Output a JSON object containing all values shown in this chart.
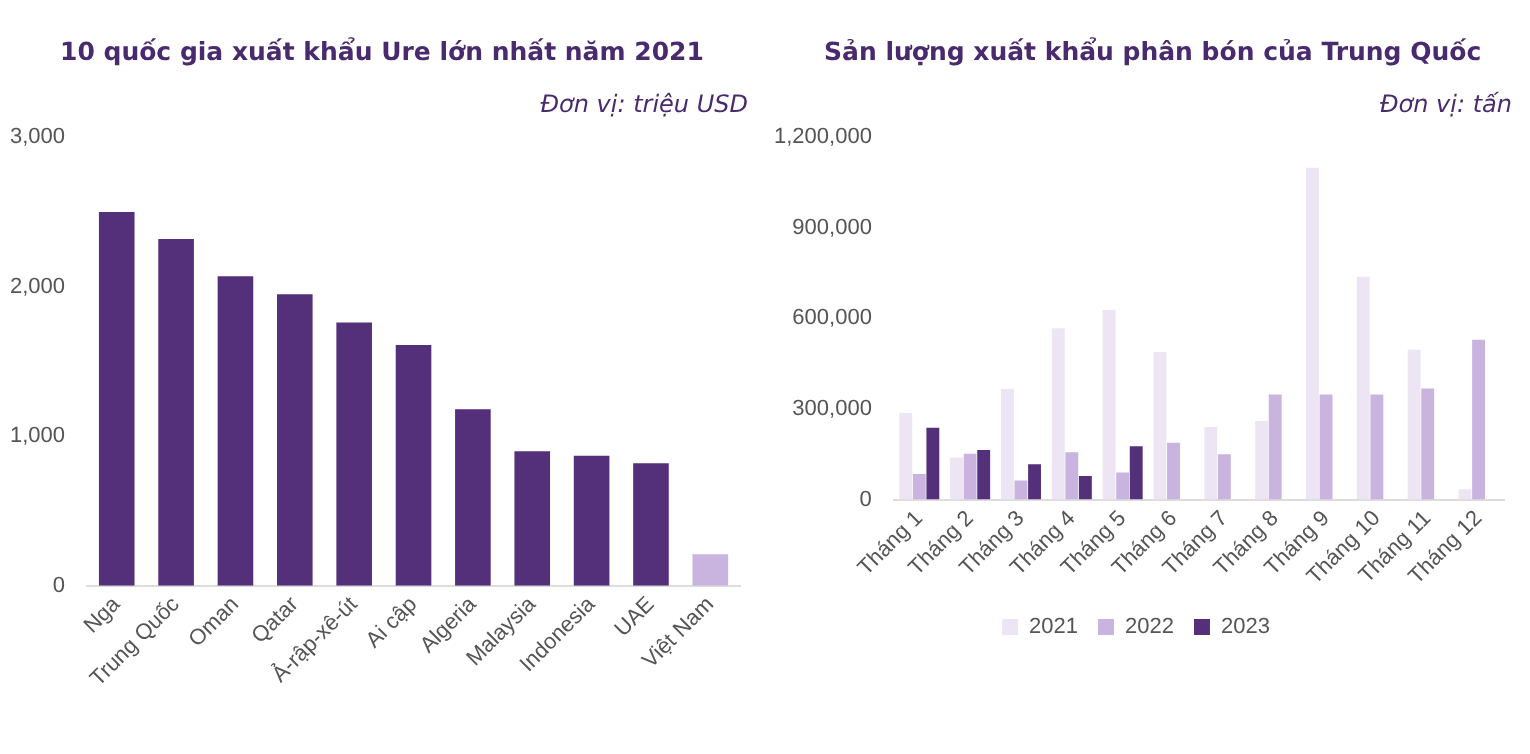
{
  "chart_data": [
    {
      "type": "bar",
      "title": "10 quốc gia xuất khẩu Ure lớn nhất năm 2021",
      "subtitle": "Đơn vị: triệu USD",
      "categories": [
        "Nga",
        "Trung Quốc",
        "Oman",
        "Qatar",
        "Ả-rập-xê-út",
        "Ai cập",
        "Algeria",
        "Malaysia",
        "Indonesia",
        "UAE",
        "Việt Nam"
      ],
      "values": [
        2500,
        2320,
        2070,
        1950,
        1760,
        1610,
        1180,
        900,
        870,
        820,
        210
      ],
      "colors": [
        "#55307a",
        "#55307a",
        "#55307a",
        "#55307a",
        "#55307a",
        "#55307a",
        "#55307a",
        "#55307a",
        "#55307a",
        "#55307a",
        "#c9b3df"
      ],
      "ylim": [
        0,
        3000
      ],
      "yticks": [
        {
          "value": 0,
          "label": "0"
        },
        {
          "value": 1000,
          "label": "1,000"
        },
        {
          "value": 2000,
          "label": "2,000"
        },
        {
          "value": 3000,
          "label": "3,000"
        }
      ],
      "grid": false,
      "legend": false
    },
    {
      "type": "bar",
      "title": "Sản lượng xuất khẩu phân bón của Trung Quốc",
      "subtitle": "Đơn vị: tấn",
      "categories": [
        "Tháng 1",
        "Tháng 2",
        "Tháng 3",
        "Tháng 4",
        "Tháng 5",
        "Tháng 6",
        "Tháng 7",
        "Tháng 8",
        "Tháng 9",
        "Tháng 10",
        "Tháng 11",
        "Tháng 12"
      ],
      "series": [
        {
          "name": "2021",
          "color": "#ede5f4",
          "values": [
            287000,
            139000,
            366000,
            567000,
            628000,
            489000,
            240000,
            260000,
            1099000,
            738000,
            496000,
            34000
          ]
        },
        {
          "name": "2022",
          "color": "#c9b3df",
          "values": [
            85000,
            152000,
            63000,
            157000,
            90000,
            188000,
            150000,
            348000,
            348000,
            348000,
            368000,
            529000
          ]
        },
        {
          "name": "2023",
          "color": "#55307a",
          "values": [
            238000,
            164000,
            117000,
            78000,
            177000,
            null,
            null,
            null,
            null,
            null,
            null,
            null
          ]
        }
      ],
      "ylim": [
        0,
        1200000
      ],
      "yticks": [
        {
          "value": 0,
          "label": "0"
        },
        {
          "value": 300000,
          "label": "300,000"
        },
        {
          "value": 600000,
          "label": "600,000"
        },
        {
          "value": 900000,
          "label": "900,000"
        },
        {
          "value": 1200000,
          "label": "1,200,000"
        }
      ],
      "grid": false,
      "legend": "bottom"
    }
  ]
}
